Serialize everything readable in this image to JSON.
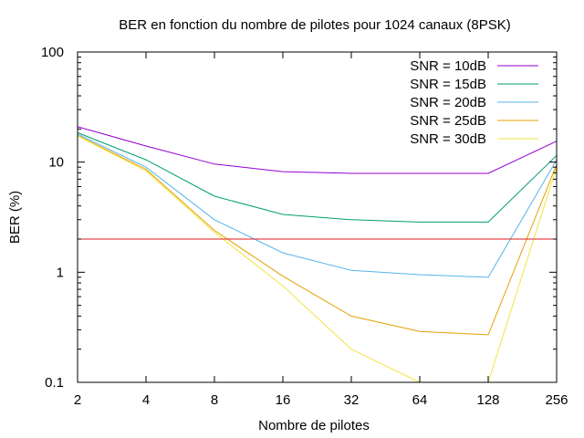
{
  "chart_data": {
    "type": "line",
    "title": "BER en fonction du nombre de pilotes pour 1024 canaux (8PSK)",
    "xlabel": "Nombre de pilotes",
    "ylabel": "BER (%)",
    "x_scale": "log2",
    "y_scale": "log10",
    "xlim": [
      2,
      256
    ],
    "ylim": [
      0.1,
      100
    ],
    "x_ticks": [
      {
        "value": 2,
        "label": "2"
      },
      {
        "value": 4,
        "label": "4"
      },
      {
        "value": 8,
        "label": "8"
      },
      {
        "value": 16,
        "label": "16"
      },
      {
        "value": 32,
        "label": "32"
      },
      {
        "value": 64,
        "label": "64"
      },
      {
        "value": 128,
        "label": "128"
      },
      {
        "value": 256,
        "label": "256"
      }
    ],
    "y_ticks": [
      {
        "value": 0.1,
        "label": "0.1"
      },
      {
        "value": 1,
        "label": "1"
      },
      {
        "value": 10,
        "label": "10"
      },
      {
        "value": 100,
        "label": "100"
      }
    ],
    "grid": false,
    "legend_position": "top-right",
    "x": [
      2,
      4,
      8,
      16,
      32,
      64,
      128,
      256
    ],
    "series": [
      {
        "name": "SNR = 10dB",
        "color": "#9400d3",
        "values": [
          21,
          14,
          9.6,
          8.2,
          7.9,
          7.9,
          7.9,
          15.5
        ]
      },
      {
        "name": "SNR = 15dB",
        "color": "#009e73",
        "values": [
          18.5,
          10.5,
          4.9,
          3.35,
          3.0,
          2.85,
          2.85,
          11.5
        ]
      },
      {
        "name": "SNR = 20dB",
        "color": "#56b4e9",
        "values": [
          18,
          9,
          3.0,
          1.5,
          1.04,
          0.95,
          0.9,
          10.5
        ]
      },
      {
        "name": "SNR = 25dB",
        "color": "#e69f00",
        "values": [
          17.5,
          8.6,
          2.4,
          0.92,
          0.4,
          0.29,
          0.27,
          9.5
        ]
      },
      {
        "name": "SNR = 30dB",
        "color": "#f0e442",
        "values": [
          17.3,
          8.3,
          2.3,
          0.75,
          0.2,
          0.1,
          0.1,
          9.0
        ]
      }
    ],
    "reference_line": {
      "value": 2,
      "color": "#e41a1c"
    }
  }
}
